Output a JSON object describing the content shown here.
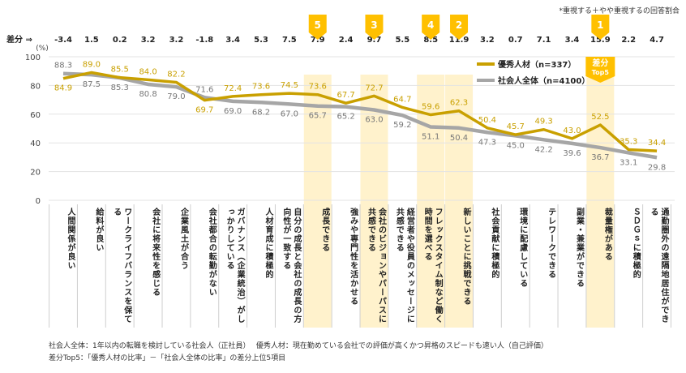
{
  "chart_data": {
    "type": "line",
    "note": "*重視する＋やや重視するの回答割合",
    "ylabel": "(%)",
    "ylim": [
      0,
      100
    ],
    "yticks": [
      0,
      20,
      40,
      60,
      80,
      100
    ],
    "grid": true,
    "diff_label": "差分 ⇒",
    "categories": [
      "人間関係が良い",
      "給料が良い",
      "ワークライフバランスを保てる",
      "会社に将来性を感じる",
      "企業風土が合う",
      "会社都合の転勤がない",
      "ガバナンス（企業統治）がしっかりしている",
      "人材育成に積極的",
      "自分の成長と会社の成長の方向性が一致する",
      "成長できる",
      "強みや専門性を活かせる",
      "会社のビジョンやパーパスに共感できる",
      "経営者や役員のメッセージに共感できる",
      "フレックスタイム制など働く時間を選べる",
      "新しいことに挑戦できる",
      "社会貢献に積極的",
      "環境に配慮している",
      "テレワークできる",
      "副業・兼業ができる",
      "裁量権がある",
      "ＳＤＧｓに積極的",
      "通勤圏外の遠隔地居住ができる"
    ],
    "diffs": [
      "-3.4",
      "1.5",
      "0.2",
      "3.2",
      "3.2",
      "-1.8",
      "3.4",
      "5.3",
      "7.5",
      "7.9",
      "2.4",
      "9.7",
      "5.5",
      "8.5",
      "11.9",
      "3.2",
      "0.7",
      "7.1",
      "3.4",
      "15.9",
      "2.2",
      "4.7"
    ],
    "top5": [
      {
        "index": 9,
        "rank": "5"
      },
      {
        "index": 11,
        "rank": "3"
      },
      {
        "index": 13,
        "rank": "4"
      },
      {
        "index": 14,
        "rank": "2"
      },
      {
        "index": 19,
        "rank": "1"
      }
    ],
    "top5_badge": [
      "差分",
      "Top5"
    ],
    "series": [
      {
        "name": "優秀人材（n=337）",
        "color": "#c9a000",
        "values": [
          84.9,
          89.0,
          85.5,
          84.0,
          82.2,
          69.7,
          72.4,
          73.6,
          74.5,
          73.6,
          67.7,
          72.7,
          64.7,
          59.6,
          62.3,
          50.4,
          45.7,
          49.3,
          43.0,
          52.5,
          35.3,
          34.4
        ]
      },
      {
        "name": "社会人全体（n=4100）",
        "color": "#a6a6a6",
        "values": [
          88.3,
          87.5,
          85.3,
          80.8,
          79.0,
          71.6,
          69.0,
          68.2,
          67.0,
          65.7,
          65.2,
          63.0,
          59.2,
          51.1,
          50.4,
          47.3,
          45.0,
          42.2,
          39.6,
          36.7,
          33.1,
          29.8
        ]
      }
    ],
    "highlight_color": "#fff2cc",
    "badge_color": "#ffc000"
  },
  "footnotes": [
    "社会人全体：1年以内の転職を検討している社会人（正社員）　 優秀人材：現在勤めている会社での評価が高くかつ昇格のスピードも速い人（自己評価）",
    "差分Top5：「優秀人材の比率」－「社会人全体の比率」の差分上位5項目"
  ]
}
